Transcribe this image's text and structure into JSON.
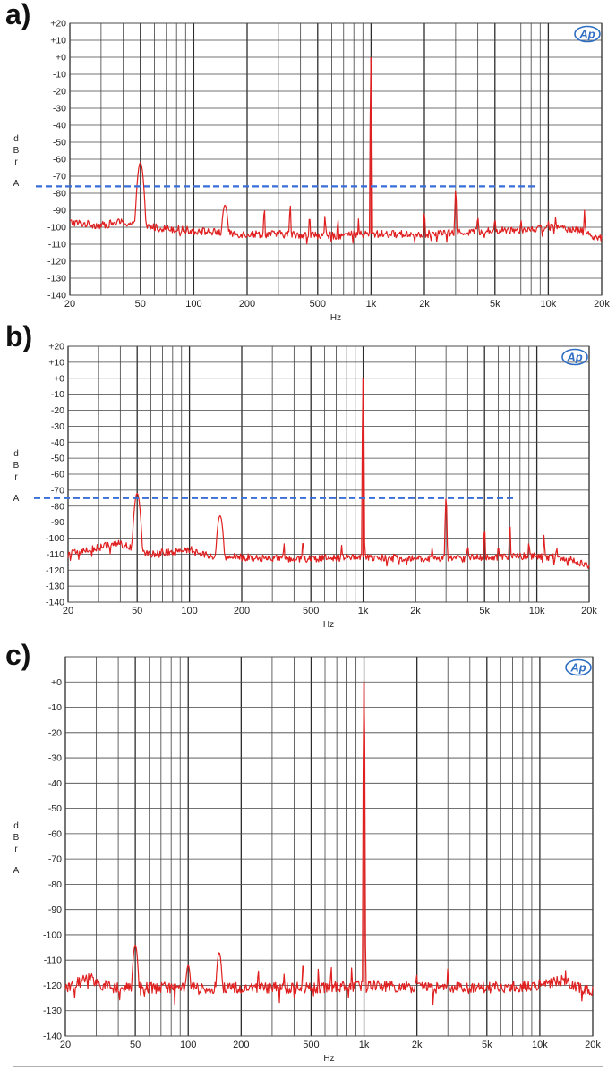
{
  "chart_data": [
    {
      "type": "line",
      "panel_label": "a)",
      "logo": "Ap",
      "xlabel": "Hz",
      "ylabel_letters": [
        "d",
        "B",
        "r"
      ],
      "ylabel_unit": "A",
      "x_scale": "log",
      "xlim": [
        20,
        20000
      ],
      "ylim": [
        -140,
        20
      ],
      "x_ticks": [
        20,
        50,
        100,
        200,
        500,
        1000,
        2000,
        5000,
        10000,
        20000
      ],
      "x_tick_labels": [
        "20",
        "50",
        "100",
        "200",
        "500",
        "1k",
        "2k",
        "5k",
        "10k",
        "20k"
      ],
      "y_ticks": [
        20,
        10,
        0,
        -10,
        -20,
        -30,
        -40,
        -50,
        -60,
        -70,
        -80,
        -90,
        -100,
        -110,
        -120,
        -130,
        -140
      ],
      "y_tick_labels": [
        "+20",
        "+10",
        "+0",
        "-10",
        "-20",
        "-30",
        "-40",
        "-50",
        "-60",
        "-70",
        "-80",
        "-90",
        "-100",
        "-110",
        "-120",
        "-130",
        "-140"
      ],
      "grid": true,
      "line_color": "#e02020",
      "reference_color": "#3a6fd8",
      "reference_line": {
        "y": -76,
        "x_start": 20,
        "x_end": 8500
      },
      "noise_floor": [
        [
          20,
          -97
        ],
        [
          30,
          -99
        ],
        [
          38,
          -97
        ],
        [
          60,
          -100
        ],
        [
          100,
          -102
        ],
        [
          180,
          -104
        ],
        [
          300,
          -104
        ],
        [
          600,
          -105
        ],
        [
          1000,
          -104
        ],
        [
          2000,
          -104
        ],
        [
          5000,
          -102
        ],
        [
          8000,
          -101
        ],
        [
          10000,
          -100
        ],
        [
          14000,
          -101
        ],
        [
          17000,
          -104
        ],
        [
          20000,
          -107
        ]
      ],
      "peaks": [
        [
          50,
          -62
        ],
        [
          150,
          -87
        ],
        [
          250,
          -89
        ],
        [
          350,
          -87
        ],
        [
          450,
          -93
        ],
        [
          550,
          -93
        ],
        [
          650,
          -95
        ],
        [
          850,
          -95
        ],
        [
          1000,
          0
        ],
        [
          2000,
          -91
        ],
        [
          3000,
          -78
        ],
        [
          4000,
          -93
        ],
        [
          5000,
          -94
        ],
        [
          7000,
          -95
        ],
        [
          10000,
          -96
        ],
        [
          11000,
          -94
        ],
        [
          16000,
          -90
        ]
      ]
    },
    {
      "type": "line",
      "panel_label": "b)",
      "logo": "Ap",
      "xlabel": "Hz",
      "ylabel_letters": [
        "d",
        "B",
        "r"
      ],
      "ylabel_unit": "A",
      "x_scale": "log",
      "xlim": [
        20,
        20000
      ],
      "ylim": [
        -140,
        20
      ],
      "x_ticks": [
        20,
        50,
        100,
        200,
        500,
        1000,
        2000,
        5000,
        10000,
        20000
      ],
      "x_tick_labels": [
        "20",
        "50",
        "100",
        "200",
        "500",
        "1k",
        "2k",
        "5k",
        "10k",
        "20k"
      ],
      "y_ticks": [
        20,
        10,
        0,
        -10,
        -20,
        -30,
        -40,
        -50,
        -60,
        -70,
        -80,
        -90,
        -100,
        -110,
        -120,
        -130,
        -140
      ],
      "y_tick_labels": [
        "+20",
        "+10",
        "+0",
        "-10",
        "-20",
        "-30",
        "-40",
        "-50",
        "-60",
        "-70",
        "-80",
        "-90",
        "-100",
        "-110",
        "-120",
        "-130",
        "-140"
      ],
      "grid": true,
      "line_color": "#e02020",
      "reference_color": "#3a6fd8",
      "reference_line": {
        "y": -75,
        "x_start": 20,
        "x_end": 7500
      },
      "noise_floor": [
        [
          20,
          -110
        ],
        [
          25,
          -108
        ],
        [
          30,
          -106
        ],
        [
          38,
          -103
        ],
        [
          60,
          -110
        ],
        [
          100,
          -107
        ],
        [
          130,
          -111
        ],
        [
          200,
          -112
        ],
        [
          400,
          -113
        ],
        [
          1000,
          -112
        ],
        [
          2000,
          -113
        ],
        [
          5000,
          -112
        ],
        [
          10000,
          -111
        ],
        [
          15000,
          -113
        ],
        [
          20000,
          -117
        ]
      ],
      "peaks": [
        [
          50,
          -72
        ],
        [
          150,
          -86
        ],
        [
          260,
          -122
        ],
        [
          350,
          -103
        ],
        [
          450,
          -101
        ],
        [
          750,
          -104
        ],
        [
          1000,
          0
        ],
        [
          1500,
          -110
        ],
        [
          2500,
          -105
        ],
        [
          3000,
          -75
        ],
        [
          4000,
          -104
        ],
        [
          5000,
          -94
        ],
        [
          6000,
          -104
        ],
        [
          7000,
          -92
        ],
        [
          9000,
          -102
        ],
        [
          11000,
          -98
        ],
        [
          13000,
          -105
        ]
      ]
    },
    {
      "type": "line",
      "panel_label": "c)",
      "logo": "Ap",
      "xlabel": "Hz",
      "ylabel_letters": [
        "d",
        "B",
        "r"
      ],
      "ylabel_unit": "A",
      "x_scale": "log",
      "xlim": [
        20,
        20000
      ],
      "ylim": [
        -140,
        10
      ],
      "x_ticks": [
        20,
        50,
        100,
        200,
        500,
        1000,
        2000,
        5000,
        10000,
        20000
      ],
      "x_tick_labels": [
        "20",
        "50",
        "100",
        "200",
        "500",
        "1k",
        "2k",
        "5k",
        "10k",
        "20k"
      ],
      "y_ticks": [
        0,
        -10,
        -20,
        -30,
        -40,
        -50,
        -60,
        -70,
        -80,
        -90,
        -100,
        -110,
        -120,
        -130,
        -140
      ],
      "y_tick_labels": [
        "+0",
        "-10",
        "-20",
        "-30",
        "-40",
        "-50",
        "-60",
        "-70",
        "-80",
        "-90",
        "-100",
        "-110",
        "-120",
        "-130",
        "-140"
      ],
      "grid": true,
      "line_color": "#e02020",
      "noise_floor": [
        [
          20,
          -121
        ],
        [
          28,
          -117
        ],
        [
          33,
          -120
        ],
        [
          40,
          -121
        ],
        [
          60,
          -121
        ],
        [
          100,
          -121
        ],
        [
          200,
          -121
        ],
        [
          500,
          -121
        ],
        [
          1000,
          -120
        ],
        [
          2000,
          -121
        ],
        [
          5000,
          -121
        ],
        [
          10000,
          -120
        ],
        [
          14000,
          -118
        ],
        [
          17000,
          -121
        ],
        [
          20000,
          -122
        ]
      ],
      "peaks": [
        [
          50,
          -104
        ],
        [
          100,
          -112
        ],
        [
          150,
          -107
        ],
        [
          250,
          -113
        ],
        [
          350,
          -115
        ],
        [
          450,
          -110
        ],
        [
          550,
          -113
        ],
        [
          650,
          -112
        ],
        [
          850,
          -113
        ],
        [
          1000,
          0
        ],
        [
          2000,
          -115
        ],
        [
          3000,
          -113
        ],
        [
          5000,
          -118
        ],
        [
          12000,
          -116
        ],
        [
          14000,
          -114
        ]
      ]
    }
  ]
}
